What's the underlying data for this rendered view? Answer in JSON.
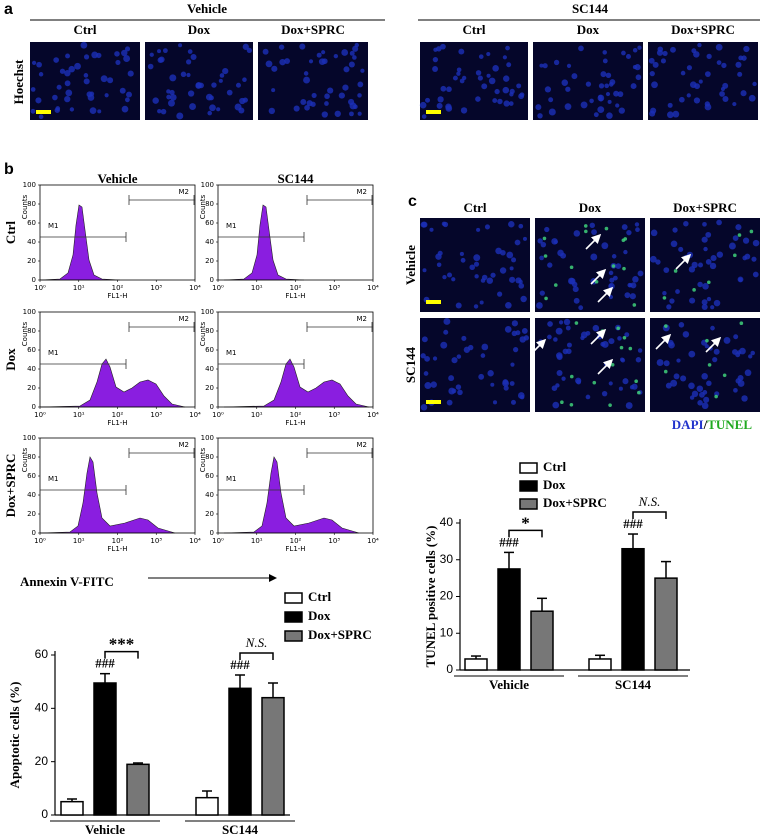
{
  "panel_a": {
    "label": "a",
    "groups": [
      "Vehicle",
      "SC144"
    ],
    "columns": [
      "Ctrl",
      "Dox",
      "Dox+SPRC"
    ],
    "row_label": "Hoechst"
  },
  "panel_b": {
    "label": "b",
    "columns": [
      "Vehicle",
      "SC144"
    ],
    "rows": [
      "Ctrl",
      "Dox",
      "Dox+SPRC"
    ],
    "x_axis_label": "Annexin V-FITC",
    "histogram_axes": {
      "yticks": [
        0,
        20,
        40,
        60,
        80,
        100
      ],
      "xticks": [
        {
          "value": 1,
          "label": "10⁰"
        },
        {
          "value": 10,
          "label": "10¹"
        },
        {
          "value": 100,
          "label": "10²"
        },
        {
          "value": 1000,
          "label": "10³"
        },
        {
          "value": 10000,
          "label": "10⁴"
        }
      ],
      "ylabel": "Counts",
      "xlabel": "FL1-H",
      "gates": [
        "M1",
        "M2"
      ]
    }
  },
  "panel_c": {
    "label": "c",
    "columns": [
      "Ctrl",
      "Dox",
      "Dox+SPRC"
    ],
    "rows": [
      "Vehicle",
      "SC144"
    ],
    "stain_label": {
      "dapi": "DAPI",
      "separator": "/",
      "tunel": "TUNEL"
    }
  },
  "chart_data": [
    {
      "type": "bar",
      "ylabel": "Apoptotic cells (%)",
      "categories": [
        "Vehicle",
        "SC144"
      ],
      "series": [
        {
          "name": "Ctrl",
          "color": "#ffffff",
          "values": [
            5,
            6.5
          ],
          "errors": [
            1,
            2.5
          ]
        },
        {
          "name": "Dox",
          "color": "#000000",
          "values": [
            49.5,
            47.5
          ],
          "errors": [
            3.5,
            5
          ]
        },
        {
          "name": "Dox+SPRC",
          "color": "#777777",
          "values": [
            19,
            44
          ],
          "errors": [
            0.5,
            5.5
          ]
        }
      ],
      "ylim": [
        0,
        60
      ],
      "yticks": [
        0,
        20,
        40,
        60
      ],
      "annotations": [
        {
          "text": "###",
          "category": 0,
          "series": 1
        },
        {
          "text": "###",
          "category": 1,
          "series": 1
        },
        {
          "text": "***",
          "category": 0,
          "between": [
            1,
            2
          ]
        },
        {
          "text": "N.S.",
          "category": 1,
          "between": [
            1,
            2
          ]
        }
      ]
    },
    {
      "type": "bar",
      "ylabel": "TUNEL positive cells (%)",
      "categories": [
        "Vehicle",
        "SC144"
      ],
      "series": [
        {
          "name": "Ctrl",
          "color": "#ffffff",
          "values": [
            3,
            3
          ],
          "errors": [
            0.8,
            1
          ]
        },
        {
          "name": "Dox",
          "color": "#000000",
          "values": [
            27.5,
            33
          ],
          "errors": [
            4.5,
            4
          ]
        },
        {
          "name": "Dox+SPRC",
          "color": "#777777",
          "values": [
            16,
            25
          ],
          "errors": [
            3.5,
            4.5
          ]
        }
      ],
      "ylim": [
        0,
        40
      ],
      "yticks": [
        0,
        10,
        20,
        30,
        40
      ],
      "annotations": [
        {
          "text": "###",
          "category": 0,
          "series": 1
        },
        {
          "text": "###",
          "category": 1,
          "series": 1
        },
        {
          "text": "*",
          "category": 0,
          "between": [
            1,
            2
          ]
        },
        {
          "text": "N.S.",
          "category": 1,
          "between": [
            1,
            2
          ]
        }
      ]
    }
  ]
}
